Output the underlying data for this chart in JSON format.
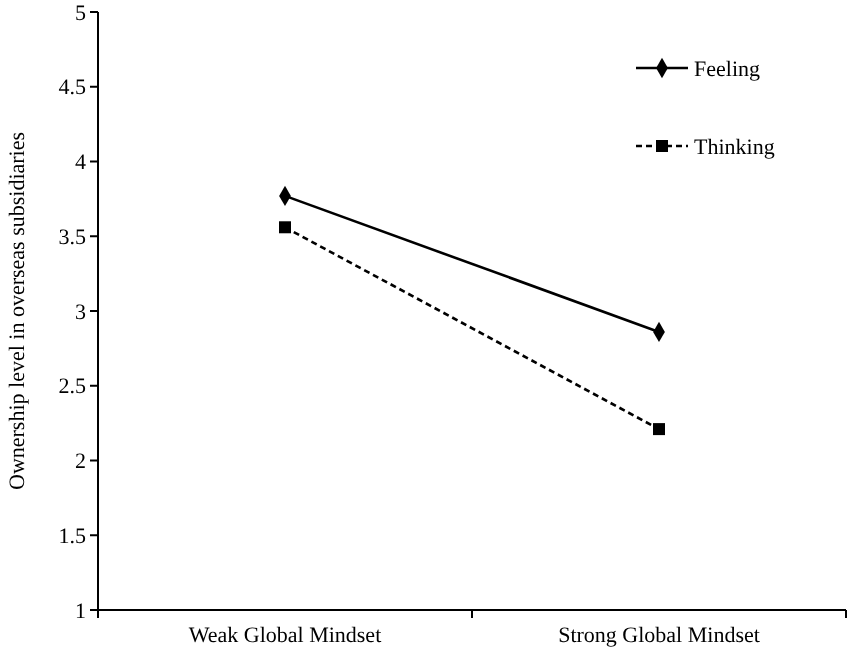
{
  "chart_data": {
    "type": "line",
    "ylabel": "Ownership level in overseas subsidiaries",
    "categories": [
      "Weak Global Mindset",
      "Strong Global Mindset"
    ],
    "series": [
      {
        "name": "Feeling",
        "color": "#000000",
        "values": [
          3.77,
          2.86
        ],
        "marker": "diamond",
        "line_style": "solid"
      },
      {
        "name": "Thinking",
        "color": "#000000",
        "values": [
          3.56,
          2.21
        ],
        "marker": "square",
        "line_style": "dashed"
      }
    ],
    "ylim": [
      1,
      5
    ],
    "yticks": [
      1,
      1.5,
      2,
      2.5,
      3,
      3.5,
      4,
      4.5,
      5
    ],
    "grid": false,
    "legend": "top right"
  }
}
